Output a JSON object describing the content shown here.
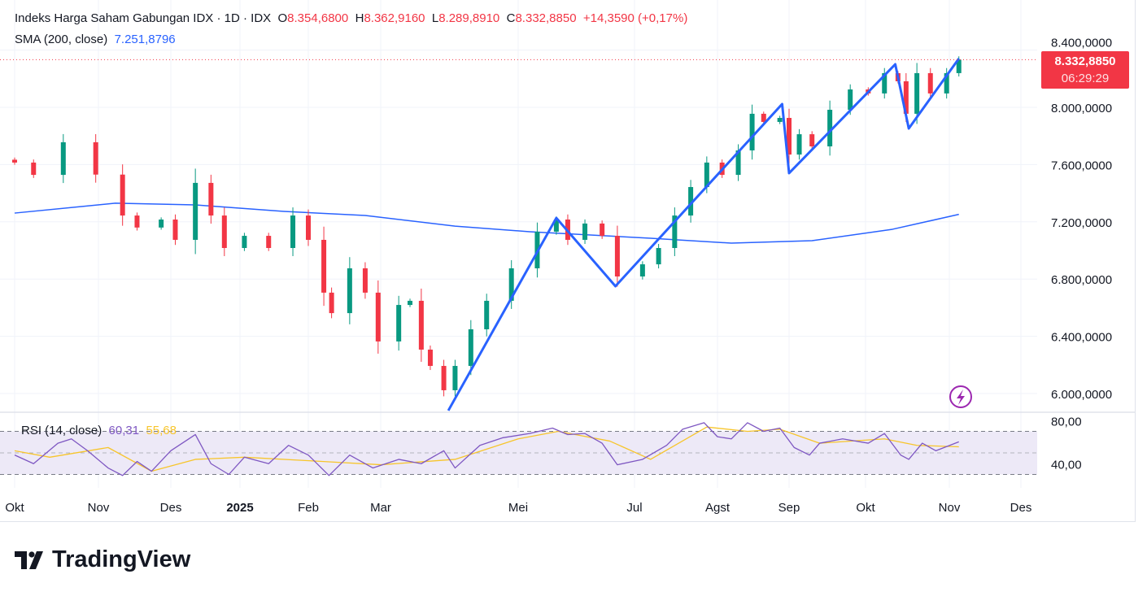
{
  "legend": {
    "title": "Indeks Harga Saham Gabungan IDX · 1D · IDX",
    "open_label": "O",
    "open": "8.354,6800",
    "high_label": "H",
    "high": "8.362,9160",
    "low_label": "L",
    "low": "8.289,8910",
    "close_label": "C",
    "close": "8.332,8850",
    "change": "+14,3590 (+0,17%)",
    "sma_label": "SMA (200, close)",
    "sma_value": "7.251,8796"
  },
  "price_tag": {
    "price": "8.332,8850",
    "countdown": "06:29:29"
  },
  "rsi_legend": {
    "label": "RSI (14, close)",
    "rsi": "60,31",
    "rsi_ma": "55,68"
  },
  "brand": {
    "name": "TradingView"
  },
  "colors": {
    "up": "#089981",
    "down": "#f23645",
    "sma": "#2962ff",
    "zigzag": "#2962ff",
    "rsi": "#7e57c2",
    "rsi_ma": "#f7c52b",
    "rsi_band": "#ede9f7"
  },
  "icons": {
    "alert": "lightning-bolt-icon"
  },
  "chart_data": {
    "type": "candlestick",
    "price_axis": {
      "ticks": [
        "8.400,0000",
        "8.000,0000",
        "7.600,0000",
        "7.200,0000",
        "6.800,0000",
        "6.400,0000",
        "6.000,0000"
      ],
      "tick_values": [
        8400,
        8000,
        7600,
        7200,
        6800,
        6400,
        6000
      ],
      "range": [
        5870,
        8480
      ]
    },
    "time_axis": {
      "ticks": [
        "Okt",
        "Nov",
        "Des",
        "2025",
        "Feb",
        "Mar",
        "Mei",
        "Jul",
        "Agst",
        "Sep",
        "Okt",
        "Nov",
        "Des"
      ]
    },
    "closes": [
      [
        "2024-10-01",
        7614
      ],
      [
        "2024-10-08",
        7528
      ],
      [
        "2024-10-19",
        7756
      ],
      [
        "2024-10-31",
        7530
      ],
      [
        "2024-11-11",
        7244
      ],
      [
        "2024-11-17",
        7160
      ],
      [
        "2024-11-27",
        7216
      ],
      [
        "2024-12-03",
        7074
      ],
      [
        "2024-12-12",
        7472
      ],
      [
        "2024-12-19",
        7244
      ],
      [
        "2024-12-25",
        7017
      ],
      [
        "2025-01-03",
        7102
      ],
      [
        "2025-01-14",
        7017
      ],
      [
        "2025-01-25",
        7244
      ],
      [
        "2025-02-01",
        7074
      ],
      [
        "2025-02-07",
        6705
      ],
      [
        "2025-02-10",
        6562
      ],
      [
        "2025-02-17",
        6875
      ],
      [
        "2025-02-23",
        6705
      ],
      [
        "2025-02-28",
        6364
      ],
      [
        "2025-03-09",
        6619
      ],
      [
        "2025-03-14",
        6648
      ],
      [
        "2025-03-19",
        6307
      ],
      [
        "2025-03-23",
        6193
      ],
      [
        "2025-03-29",
        6023
      ],
      [
        "2025-04-03",
        6193
      ],
      [
        "2025-04-10",
        6449
      ],
      [
        "2025-04-17",
        6648
      ],
      [
        "2025-04-28",
        6875
      ],
      [
        "2025-05-11",
        7131
      ],
      [
        "2025-05-21",
        7216
      ],
      [
        "2025-05-27",
        7074
      ],
      [
        "2025-06-05",
        7188
      ],
      [
        "2025-06-14",
        7102
      ],
      [
        "2025-06-22",
        6818
      ],
      [
        "2025-07-04",
        6903
      ],
      [
        "2025-07-10",
        7017
      ],
      [
        "2025-07-16",
        7244
      ],
      [
        "2025-07-22",
        7443
      ],
      [
        "2025-07-28",
        7614
      ],
      [
        "2025-08-03",
        7528
      ],
      [
        "2025-08-10",
        7699
      ],
      [
        "2025-08-16",
        7955
      ],
      [
        "2025-08-21",
        7898
      ],
      [
        "2025-08-28",
        7926
      ],
      [
        "2025-09-01",
        7670
      ],
      [
        "2025-09-05",
        7812
      ],
      [
        "2025-09-10",
        7727
      ],
      [
        "2025-09-17",
        7983
      ],
      [
        "2025-09-25",
        8125
      ],
      [
        "2025-10-02",
        8097
      ],
      [
        "2025-10-08",
        8239
      ],
      [
        "2025-10-13",
        8182
      ],
      [
        "2025-10-16",
        7955
      ],
      [
        "2025-10-20",
        8239
      ],
      [
        "2025-10-25",
        8097
      ],
      [
        "2025-10-31",
        8239
      ],
      [
        "2025-11-05",
        8333
      ]
    ],
    "last_price": 8332.885,
    "sma200": [
      [
        "2024-10-01",
        7261
      ],
      [
        "2024-11-08",
        7330
      ],
      [
        "2024-12-12",
        7318
      ],
      [
        "2025-01-21",
        7273
      ],
      [
        "2025-02-23",
        7244
      ],
      [
        "2025-04-03",
        7170
      ],
      [
        "2025-05-07",
        7131
      ],
      [
        "2025-07-07",
        7085
      ],
      [
        "2025-08-07",
        7051
      ],
      [
        "2025-09-10",
        7068
      ],
      [
        "2025-10-11",
        7148
      ],
      [
        "2025-11-05",
        7252
      ]
    ],
    "zigzag": [
      [
        "2025-03-31",
        5881
      ],
      [
        "2025-05-21",
        7227
      ],
      [
        "2025-06-21",
        6750
      ],
      [
        "2025-08-29",
        8023
      ],
      [
        "2025-09-01",
        7540
      ],
      [
        "2025-10-12",
        8301
      ],
      [
        "2025-10-17",
        7852
      ],
      [
        "2025-11-05",
        8341
      ]
    ],
    "rsi_axis": {
      "ticks": [
        "80,00",
        "40,00"
      ],
      "tick_values": [
        80,
        40
      ],
      "bands": [
        70,
        50,
        30
      ],
      "range": [
        22,
        88
      ]
    },
    "rsi": [
      [
        "2024-10-01",
        48
      ],
      [
        "2024-10-08",
        40
      ],
      [
        "2024-10-17",
        59
      ],
      [
        "2024-10-22",
        63
      ],
      [
        "2024-10-28",
        52
      ],
      [
        "2024-11-05",
        36
      ],
      [
        "2024-11-11",
        29
      ],
      [
        "2024-11-17",
        42
      ],
      [
        "2024-11-23",
        33
      ],
      [
        "2024-12-01",
        52
      ],
      [
        "2024-12-12",
        67
      ],
      [
        "2024-12-19",
        40
      ],
      [
        "2024-12-27",
        30
      ],
      [
        "2025-01-03",
        46
      ],
      [
        "2025-01-14",
        40
      ],
      [
        "2025-01-23",
        57
      ],
      [
        "2025-02-01",
        48
      ],
      [
        "2025-02-09",
        29
      ],
      [
        "2025-02-17",
        48
      ],
      [
        "2025-02-26",
        36
      ],
      [
        "2025-03-09",
        44
      ],
      [
        "2025-03-19",
        40
      ],
      [
        "2025-03-29",
        52
      ],
      [
        "2025-04-03",
        36
      ],
      [
        "2025-04-14",
        57
      ],
      [
        "2025-04-24",
        64
      ],
      [
        "2025-05-07",
        68
      ],
      [
        "2025-05-19",
        73
      ],
      [
        "2025-05-27",
        67
      ],
      [
        "2025-06-05",
        68
      ],
      [
        "2025-06-14",
        59
      ],
      [
        "2025-06-22",
        39
      ],
      [
        "2025-07-04",
        44
      ],
      [
        "2025-07-13",
        57
      ],
      [
        "2025-07-19",
        72
      ],
      [
        "2025-07-27",
        78
      ],
      [
        "2025-08-01",
        65
      ],
      [
        "2025-08-07",
        63
      ],
      [
        "2025-08-14",
        78
      ],
      [
        "2025-08-21",
        70
      ],
      [
        "2025-08-28",
        73
      ],
      [
        "2025-09-03",
        55
      ],
      [
        "2025-09-09",
        48
      ],
      [
        "2025-09-13",
        59
      ],
      [
        "2025-09-22",
        63
      ],
      [
        "2025-10-02",
        59
      ],
      [
        "2025-10-08",
        68
      ],
      [
        "2025-10-14",
        48
      ],
      [
        "2025-10-17",
        44
      ],
      [
        "2025-10-22",
        59
      ],
      [
        "2025-10-27",
        52
      ],
      [
        "2025-11-05",
        60.31
      ]
    ],
    "rsi_ma": [
      [
        "2024-10-01",
        52
      ],
      [
        "2024-10-14",
        46
      ],
      [
        "2024-11-05",
        55
      ],
      [
        "2024-11-23",
        33
      ],
      [
        "2024-12-12",
        44
      ],
      [
        "2025-01-03",
        46
      ],
      [
        "2025-02-07",
        42
      ],
      [
        "2025-03-01",
        39
      ],
      [
        "2025-04-03",
        44
      ],
      [
        "2025-05-01",
        63
      ],
      [
        "2025-05-22",
        70
      ],
      [
        "2025-06-18",
        61
      ],
      [
        "2025-07-07",
        44
      ],
      [
        "2025-07-28",
        74
      ],
      [
        "2025-08-14",
        70
      ],
      [
        "2025-08-28",
        72
      ],
      [
        "2025-09-13",
        59
      ],
      [
        "2025-10-08",
        63
      ],
      [
        "2025-10-20",
        57
      ],
      [
        "2025-11-05",
        55.68
      ]
    ]
  }
}
